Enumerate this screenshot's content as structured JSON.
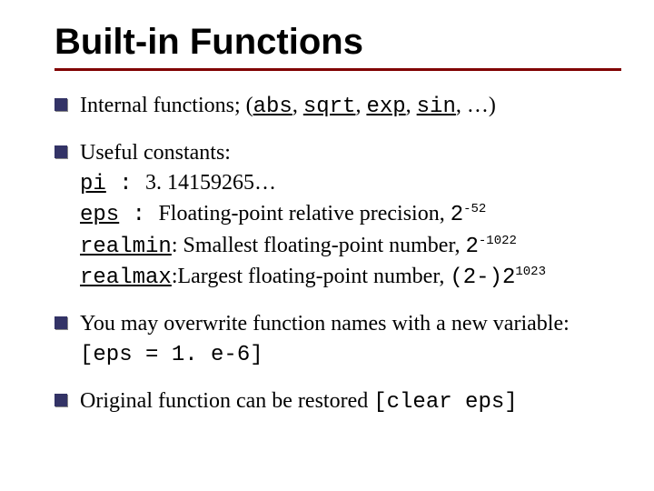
{
  "title": "Built-in Functions",
  "colors": {
    "title_underline": "#800000",
    "bullet_fill": "#333366",
    "text": "#000000",
    "background": "#ffffff"
  },
  "typography": {
    "title_font": "Verdana",
    "title_size_pt": 40,
    "title_weight": "bold",
    "body_font": "Georgia",
    "body_size_pt": 24,
    "mono_font": "Courier New"
  },
  "bullets": [
    {
      "lead": "Internal functions; (",
      "funcs": [
        "abs",
        "sqrt",
        "exp",
        "sin"
      ],
      "trail": ", …)"
    },
    {
      "lead": "Useful constants:",
      "pi_label": "pi",
      "pi_sep": " :       ",
      "pi_value": "3. 14159265…",
      "eps_label": "eps",
      "eps_sep": "       :       ",
      "eps_desc": "Floating-point relative precision, ",
      "eps_base": "2",
      "eps_exp": "-52",
      "realmin_label": "realmin",
      "realmin_desc": ": Smallest floating-point number, ",
      "realmin_base": "2",
      "realmin_exp": "-1022",
      "realmax_label": "realmax",
      "realmax_desc": ":Largest floating-point number, ",
      "realmax_val": "(2-)2",
      "realmax_exp": "1023"
    },
    {
      "text_a": "You may overwrite function names with a new variable: ",
      "bracket_open": "[",
      "code": "eps = 1. e-6",
      "bracket_close": "]"
    },
    {
      "text_a": "Original function can be restored ",
      "bracket_open": "[",
      "code": "clear  eps",
      "bracket_close": "]"
    }
  ]
}
